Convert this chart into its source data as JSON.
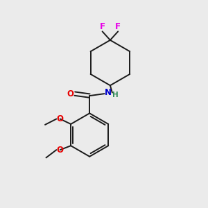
{
  "background_color": "#ebebeb",
  "bond_color": "#1a1a1a",
  "F_color": "#e800e8",
  "O_color": "#e80000",
  "N_color": "#0000cc",
  "H_color": "#2e8b57",
  "figsize": [
    3.0,
    3.0
  ],
  "dpi": 100,
  "xlim": [
    0,
    10
  ],
  "ylim": [
    0,
    10
  ]
}
